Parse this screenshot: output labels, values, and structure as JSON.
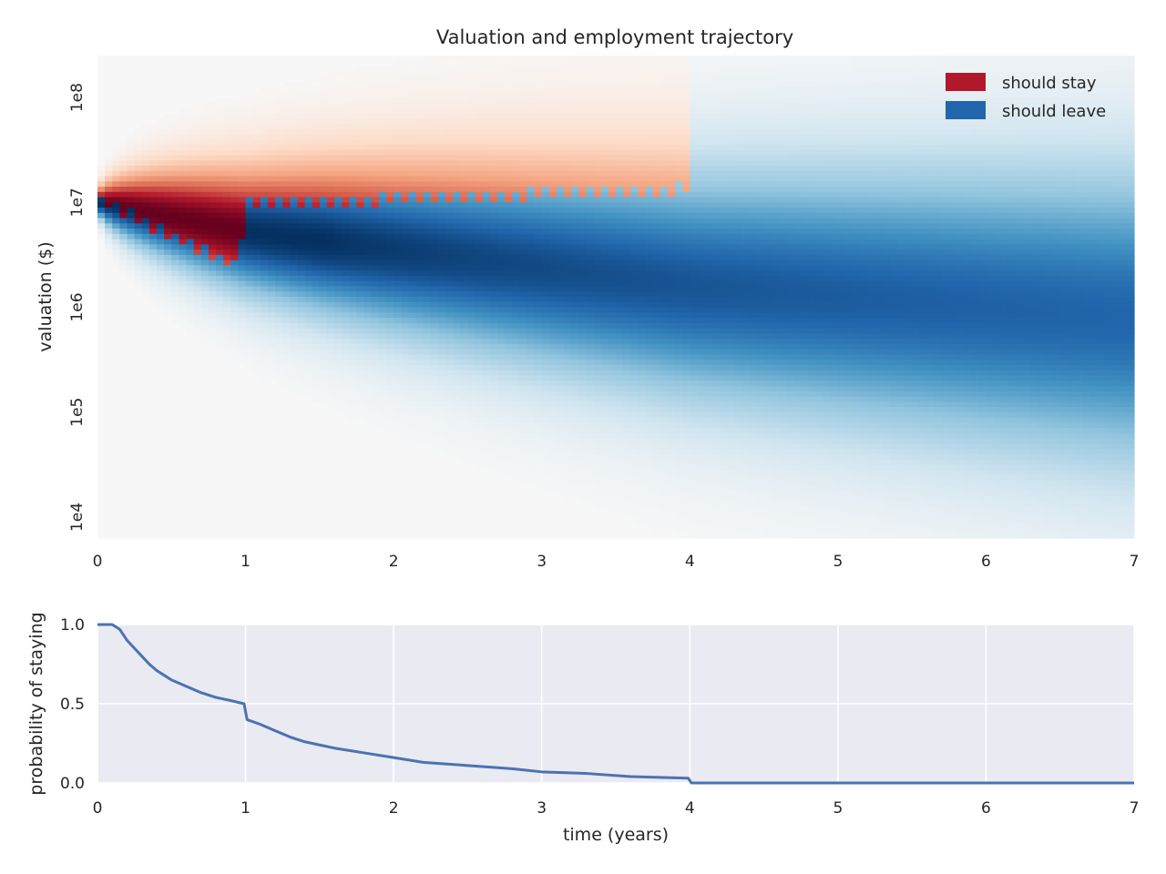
{
  "chart_data": [
    {
      "type": "heatmap",
      "title": "Valuation and employment trajectory",
      "xlabel": "",
      "ylabel": "valuation ($)",
      "x_ticks": [
        "0",
        "1",
        "2",
        "3",
        "4",
        "5",
        "6",
        "7"
      ],
      "y_ticks": [
        "1e4",
        "1e5",
        "1e6",
        "1e7",
        "1e8"
      ],
      "xlim": [
        0,
        7
      ],
      "ylim_log10": [
        3.8,
        8.4
      ],
      "scale_y": "log",
      "legend": {
        "position": "top-right",
        "items": [
          {
            "label": "should stay",
            "color": "#b2182b"
          },
          {
            "label": "should leave",
            "color": "#2166ac"
          }
        ]
      },
      "initial_valuation": 10000000,
      "stay_region_end_year": 4,
      "distribution_center_log10": [
        {
          "t": 0,
          "v": 7.0
        },
        {
          "t": 1,
          "v": 6.72
        },
        {
          "t": 4,
          "v": 6.2
        },
        {
          "t": 7,
          "v": 5.9
        }
      ],
      "stay_threshold_log10": [
        {
          "t": 0,
          "v": 7.0
        },
        {
          "t": 0.95,
          "v": 6.35
        },
        {
          "t": 1.0,
          "v": 6.95
        },
        {
          "t": 4.0,
          "v": 7.1
        }
      ]
    },
    {
      "type": "line",
      "xlabel": "time (years)",
      "ylabel": "probability of staying",
      "x_ticks": [
        "0",
        "1",
        "2",
        "3",
        "4",
        "5",
        "6",
        "7"
      ],
      "y_ticks": [
        "0.0",
        "0.5",
        "1.0"
      ],
      "xlim": [
        0,
        7
      ],
      "ylim": [
        0,
        1
      ],
      "grid": true,
      "series": [
        {
          "color": "#4c72b0",
          "x": [
            0,
            0.1,
            0.15,
            0.2,
            0.25,
            0.3,
            0.35,
            0.4,
            0.45,
            0.5,
            0.6,
            0.7,
            0.8,
            0.9,
            0.99,
            1.01,
            1.1,
            1.2,
            1.3,
            1.4,
            1.5,
            1.6,
            1.8,
            2.0,
            2.2,
            2.5,
            2.8,
            3.0,
            3.3,
            3.6,
            3.99,
            4.01,
            5.0,
            6.0,
            7.0
          ],
          "y": [
            1.0,
            1.0,
            0.97,
            0.9,
            0.85,
            0.8,
            0.75,
            0.71,
            0.68,
            0.65,
            0.61,
            0.57,
            0.54,
            0.52,
            0.5,
            0.4,
            0.37,
            0.33,
            0.29,
            0.26,
            0.24,
            0.22,
            0.19,
            0.16,
            0.13,
            0.11,
            0.09,
            0.07,
            0.06,
            0.04,
            0.03,
            0.0,
            0.0,
            0.0,
            0.0
          ]
        }
      ]
    }
  ]
}
